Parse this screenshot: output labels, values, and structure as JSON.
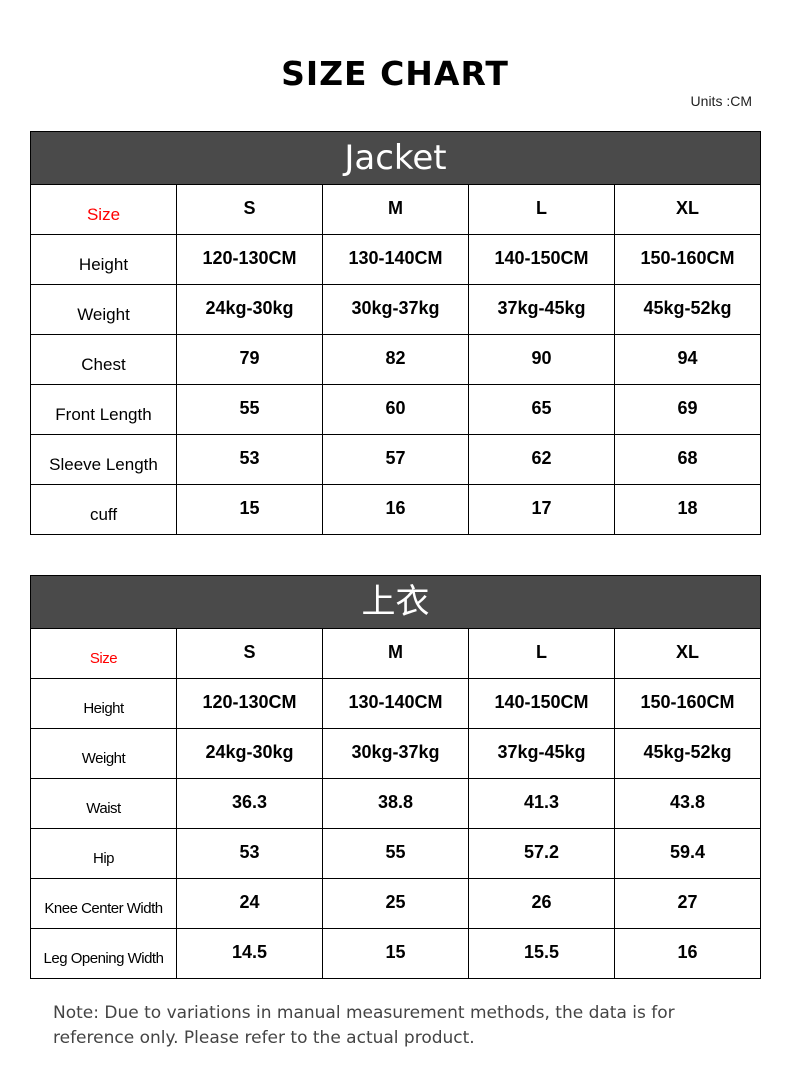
{
  "title": "SIZE CHART",
  "units": "Units :CM",
  "tables": [
    {
      "heading": "Jacket",
      "size_label": "Size",
      "sizes": [
        "S",
        "M",
        "L",
        "XL"
      ],
      "rows": [
        {
          "label": "Height",
          "values": [
            "120-130CM",
            "130-140CM",
            "140-150CM",
            "150-160CM"
          ]
        },
        {
          "label": "Weight",
          "values": [
            "24kg-30kg",
            "30kg-37kg",
            "37kg-45kg",
            "45kg-52kg"
          ]
        },
        {
          "label": "Chest",
          "values": [
            "79",
            "82",
            "90",
            "94"
          ]
        },
        {
          "label": "Front Length",
          "values": [
            "55",
            "60",
            "65",
            "69"
          ]
        },
        {
          "label": "Sleeve Length",
          "values": [
            "53",
            "57",
            "62",
            "68"
          ]
        },
        {
          "label": "cuff",
          "values": [
            "15",
            "16",
            "17",
            "18"
          ]
        }
      ]
    },
    {
      "heading": "上衣",
      "size_label": "Size",
      "sizes": [
        "S",
        "M",
        "L",
        "XL"
      ],
      "rows": [
        {
          "label": "Height",
          "values": [
            "120-130CM",
            "130-140CM",
            "140-150CM",
            "150-160CM"
          ]
        },
        {
          "label": "Weight",
          "values": [
            "24kg-30kg",
            "30kg-37kg",
            "37kg-45kg",
            "45kg-52kg"
          ]
        },
        {
          "label": "Waist",
          "values": [
            "36.3",
            "38.8",
            "41.3",
            "43.8"
          ]
        },
        {
          "label": "Hip",
          "values": [
            "53",
            "55",
            "57.2",
            "59.4"
          ]
        },
        {
          "label": "Knee Center Width",
          "values": [
            "24",
            "25",
            "26",
            "27"
          ]
        },
        {
          "label": "Leg Opening Width",
          "values": [
            "14.5",
            "15",
            "15.5",
            "16"
          ]
        }
      ]
    }
  ],
  "note": "Note: Due to variations in manual measurement methods, the data is for reference only. Please refer to the actual product.",
  "colors": {
    "header_bg": "#4a4a4a",
    "size_label": "#ff0000",
    "border": "#000000"
  }
}
